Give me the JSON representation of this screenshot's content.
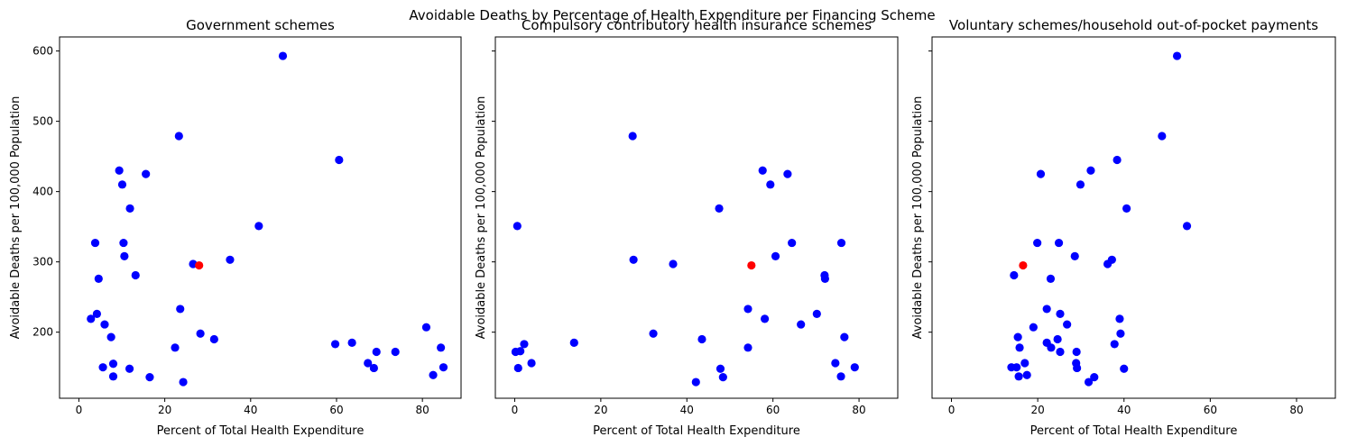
{
  "suptitle": "Avoidable Deaths by Percentage of Health Expenditure per Financing Scheme",
  "colors": {
    "point": "#0000ff",
    "highlight": "#ff0000"
  },
  "chart_data": [
    {
      "type": "scatter",
      "title": "Government schemes",
      "xlabel": "Percent of Total Health Expenditure",
      "ylabel": "Avoidable Deaths per 100,000 Population",
      "xlim": [
        -4.5,
        89
      ],
      "ylim": [
        106,
        620
      ],
      "xticks": [
        0,
        20,
        40,
        60,
        80
      ],
      "yticks": [
        200,
        300,
        400,
        500,
        600
      ],
      "grid": false,
      "points": [
        {
          "x": 47.5,
          "y": 593
        },
        {
          "x": 23.3,
          "y": 479
        },
        {
          "x": 60.6,
          "y": 445
        },
        {
          "x": 9.4,
          "y": 430
        },
        {
          "x": 15.6,
          "y": 425
        },
        {
          "x": 10.1,
          "y": 410
        },
        {
          "x": 11.9,
          "y": 376
        },
        {
          "x": 41.9,
          "y": 351
        },
        {
          "x": 3.8,
          "y": 327
        },
        {
          "x": 10.4,
          "y": 327
        },
        {
          "x": 10.6,
          "y": 308
        },
        {
          "x": 35.2,
          "y": 303
        },
        {
          "x": 26.6,
          "y": 297
        },
        {
          "x": 13.2,
          "y": 281
        },
        {
          "x": 4.6,
          "y": 276
        },
        {
          "x": 23.6,
          "y": 233
        },
        {
          "x": 4.2,
          "y": 226
        },
        {
          "x": 2.8,
          "y": 219
        },
        {
          "x": 6.0,
          "y": 211
        },
        {
          "x": 80.9,
          "y": 207
        },
        {
          "x": 7.5,
          "y": 193
        },
        {
          "x": 28.3,
          "y": 198
        },
        {
          "x": 31.5,
          "y": 190
        },
        {
          "x": 63.6,
          "y": 185
        },
        {
          "x": 59.7,
          "y": 183
        },
        {
          "x": 22.4,
          "y": 178
        },
        {
          "x": 84.3,
          "y": 178
        },
        {
          "x": 69.3,
          "y": 172
        },
        {
          "x": 73.7,
          "y": 172
        },
        {
          "x": 67.3,
          "y": 156
        },
        {
          "x": 8.0,
          "y": 155
        },
        {
          "x": 5.6,
          "y": 150
        },
        {
          "x": 11.8,
          "y": 148
        },
        {
          "x": 68.7,
          "y": 149
        },
        {
          "x": 84.9,
          "y": 150
        },
        {
          "x": 8.0,
          "y": 137
        },
        {
          "x": 16.5,
          "y": 136
        },
        {
          "x": 82.5,
          "y": 139
        },
        {
          "x": 24.3,
          "y": 129
        }
      ],
      "highlight": [
        {
          "x": 28.0,
          "y": 295
        }
      ]
    },
    {
      "type": "scatter",
      "title": "Compulsory contributory health insurance schemes",
      "xlabel": "Percent of Total Health Expenditure",
      "ylabel": "Avoidable Deaths per 100,000 Population",
      "xlim": [
        -4.5,
        89
      ],
      "ylim": [
        106,
        620
      ],
      "xticks": [
        0,
        20,
        40,
        60,
        80
      ],
      "yticks": [
        200,
        300,
        400,
        500,
        600
      ],
      "grid": false,
      "points": [
        {
          "x": 27.4,
          "y": 479
        },
        {
          "x": 57.6,
          "y": 430
        },
        {
          "x": 63.4,
          "y": 425
        },
        {
          "x": 59.4,
          "y": 410
        },
        {
          "x": 47.5,
          "y": 376
        },
        {
          "x": 0.6,
          "y": 351
        },
        {
          "x": 64.4,
          "y": 327
        },
        {
          "x": 75.9,
          "y": 327
        },
        {
          "x": 60.6,
          "y": 308
        },
        {
          "x": 27.6,
          "y": 303
        },
        {
          "x": 36.8,
          "y": 297
        },
        {
          "x": 72.0,
          "y": 281
        },
        {
          "x": 72.1,
          "y": 276
        },
        {
          "x": 54.2,
          "y": 233
        },
        {
          "x": 70.2,
          "y": 226
        },
        {
          "x": 58.1,
          "y": 219
        },
        {
          "x": 66.5,
          "y": 211
        },
        {
          "x": 32.2,
          "y": 198
        },
        {
          "x": 76.6,
          "y": 193
        },
        {
          "x": 43.5,
          "y": 190
        },
        {
          "x": 13.8,
          "y": 185
        },
        {
          "x": 2.2,
          "y": 183
        },
        {
          "x": 54.2,
          "y": 178
        },
        {
          "x": 0.2,
          "y": 172
        },
        {
          "x": 1.3,
          "y": 173
        },
        {
          "x": 3.9,
          "y": 156
        },
        {
          "x": 74.5,
          "y": 156
        },
        {
          "x": 0.8,
          "y": 149
        },
        {
          "x": 47.8,
          "y": 148
        },
        {
          "x": 79.0,
          "y": 150
        },
        {
          "x": 48.4,
          "y": 136
        },
        {
          "x": 75.8,
          "y": 137
        },
        {
          "x": 42.1,
          "y": 129
        }
      ],
      "highlight": [
        {
          "x": 55.0,
          "y": 295
        }
      ]
    },
    {
      "type": "scatter",
      "title": "Voluntary schemes/household out-of-pocket payments",
      "xlabel": "Percent of Total Health Expenditure",
      "ylabel": "Avoidable Deaths per 100,000 Population",
      "xlim": [
        -4.5,
        89
      ],
      "ylim": [
        106,
        620
      ],
      "xticks": [
        0,
        20,
        40,
        60,
        80
      ],
      "yticks": [
        200,
        300,
        400,
        500,
        600
      ],
      "grid": false,
      "points": [
        {
          "x": 52.3,
          "y": 593
        },
        {
          "x": 48.8,
          "y": 479
        },
        {
          "x": 38.4,
          "y": 445
        },
        {
          "x": 32.3,
          "y": 430
        },
        {
          "x": 20.7,
          "y": 425
        },
        {
          "x": 29.9,
          "y": 410
        },
        {
          "x": 40.6,
          "y": 376
        },
        {
          "x": 54.6,
          "y": 351
        },
        {
          "x": 19.9,
          "y": 327
        },
        {
          "x": 24.9,
          "y": 327
        },
        {
          "x": 28.6,
          "y": 308
        },
        {
          "x": 37.2,
          "y": 303
        },
        {
          "x": 36.2,
          "y": 297
        },
        {
          "x": 14.5,
          "y": 281
        },
        {
          "x": 23.0,
          "y": 276
        },
        {
          "x": 22.1,
          "y": 233
        },
        {
          "x": 25.2,
          "y": 226
        },
        {
          "x": 39.0,
          "y": 219
        },
        {
          "x": 26.8,
          "y": 211
        },
        {
          "x": 19.0,
          "y": 207
        },
        {
          "x": 15.4,
          "y": 193
        },
        {
          "x": 39.2,
          "y": 198
        },
        {
          "x": 24.6,
          "y": 190
        },
        {
          "x": 22.1,
          "y": 185
        },
        {
          "x": 37.8,
          "y": 183
        },
        {
          "x": 15.8,
          "y": 178
        },
        {
          "x": 23.1,
          "y": 178
        },
        {
          "x": 25.2,
          "y": 172
        },
        {
          "x": 29.0,
          "y": 172
        },
        {
          "x": 17.0,
          "y": 156
        },
        {
          "x": 28.9,
          "y": 156
        },
        {
          "x": 13.9,
          "y": 150
        },
        {
          "x": 15.1,
          "y": 150
        },
        {
          "x": 29.1,
          "y": 149
        },
        {
          "x": 40.0,
          "y": 148
        },
        {
          "x": 15.6,
          "y": 137
        },
        {
          "x": 17.5,
          "y": 139
        },
        {
          "x": 33.1,
          "y": 136
        },
        {
          "x": 31.8,
          "y": 129
        }
      ],
      "highlight": [
        {
          "x": 16.6,
          "y": 295
        }
      ]
    }
  ]
}
